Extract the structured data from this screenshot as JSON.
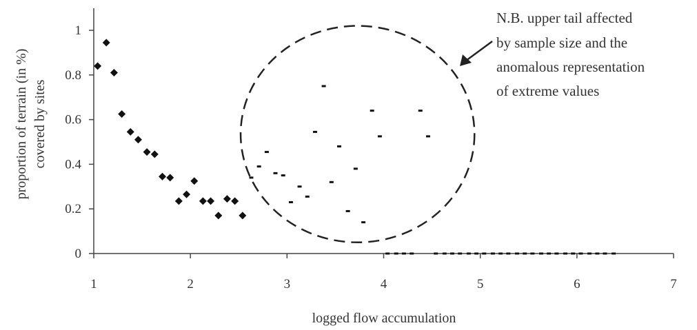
{
  "chart_data": {
    "type": "scatter",
    "title": "",
    "xlabel": "logged flow accumulation",
    "ylabel_lines": [
      "proportion of terrain (in %)",
      "covered by sites"
    ],
    "xlim": [
      1,
      7
    ],
    "ylim": [
      0,
      1
    ],
    "x_ticks": [
      "1",
      "2",
      "3",
      "4",
      "5",
      "6",
      "7"
    ],
    "y_ticks": [
      "0",
      "0.2",
      "0.4",
      "0.6",
      "0.8",
      "1"
    ],
    "grid": false,
    "legend": "none",
    "annotation_lines": [
      "N.B. upper tail affected",
      "by sample size and the",
      "anomalous representation",
      "of extreme values"
    ],
    "highlight_ellipse": {
      "cx": 3.73,
      "cy": 0.535,
      "rx": 1.21,
      "ry": 0.485
    },
    "series": [
      {
        "marker": "diamond",
        "x": [
          1.04,
          1.13,
          1.21,
          1.29,
          1.38,
          1.46,
          1.55,
          1.63,
          1.71,
          1.79,
          1.88,
          1.96,
          2.04,
          2.13,
          2.21,
          2.29,
          2.38,
          2.46,
          2.54
        ],
        "y": [
          0.84,
          0.945,
          0.81,
          0.625,
          0.545,
          0.51,
          0.455,
          0.445,
          0.345,
          0.34,
          0.235,
          0.265,
          0.325,
          0.235,
          0.235,
          0.17,
          0.245,
          0.235,
          0.17
        ]
      },
      {
        "marker": "dash",
        "x": [
          2.63,
          2.71,
          2.79,
          2.88,
          2.96,
          3.04,
          3.13,
          3.21,
          3.29,
          3.38,
          3.46,
          3.54,
          3.63,
          3.71,
          3.79,
          3.88,
          3.96,
          4.04
        ],
        "y": [
          0.34,
          0.39,
          0.455,
          0.36,
          0.35,
          0.23,
          0.3,
          0.255,
          0.545,
          0.75,
          0.32,
          0.48,
          0.19,
          0.38,
          0.14,
          0.64,
          0.525,
          0
        ],
        "x2": [
          4.13,
          4.21,
          4.29,
          4.38,
          4.46,
          4.54,
          4.63,
          4.71,
          4.79,
          4.88,
          4.96,
          5.04,
          5.13,
          5.21,
          5.29,
          5.38,
          5.46,
          5.54,
          5.63,
          5.71,
          5.79,
          5.88,
          5.96,
          6.04,
          6.13,
          6.21,
          6.29,
          6.38
        ],
        "y2": [
          0,
          0,
          0,
          0.64,
          0.525,
          0,
          0,
          0,
          0,
          0,
          0,
          0,
          0,
          0,
          0,
          0,
          0,
          0,
          0,
          0,
          0,
          0,
          0,
          0,
          0,
          0,
          0,
          0
        ]
      }
    ]
  }
}
